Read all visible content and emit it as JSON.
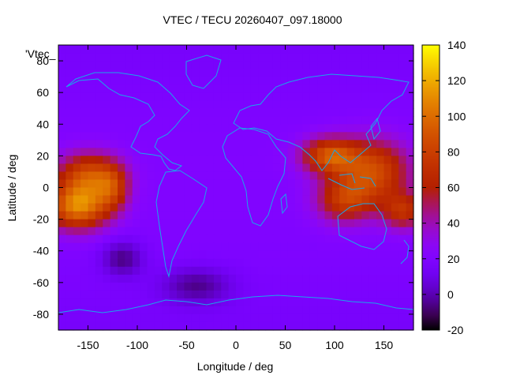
{
  "chart_data": {
    "type": "heatmap",
    "title": "VTEC / TECU 20260407_097.18000",
    "xlabel": "Longitude / deg",
    "ylabel": "Latitude / deg",
    "key_label": "'Vtec_",
    "xlim": [
      -180,
      180
    ],
    "ylim": [
      -90,
      90
    ],
    "x_ticks": [
      -150,
      -100,
      -50,
      0,
      50,
      100,
      150
    ],
    "y_ticks": [
      -80,
      -60,
      -40,
      -20,
      0,
      20,
      40,
      60,
      80
    ],
    "colorbar": {
      "range": [
        -20,
        140
      ],
      "ticks": [
        -20,
        0,
        20,
        40,
        60,
        80,
        100,
        120,
        140
      ],
      "palette": "gnuplot rgbformulae 7,5,15 (black-purple-red-orange-yellow)"
    },
    "background_value": 15,
    "coastline_color": "#1aa7e8",
    "hotspots": [
      {
        "lon": -160,
        "lat": -12,
        "peak": 100,
        "sx": 22,
        "sy": 10
      },
      {
        "lon": -150,
        "lat": 8,
        "peak": 75,
        "sx": 22,
        "sy": 10
      },
      {
        "lon": -125,
        "lat": 0,
        "peak": 55,
        "sx": 12,
        "sy": 10
      },
      {
        "lon": 95,
        "lat": 20,
        "peak": 82,
        "sx": 20,
        "sy": 8
      },
      {
        "lon": 140,
        "lat": 10,
        "peak": 78,
        "sx": 25,
        "sy": 14
      },
      {
        "lon": 110,
        "lat": -8,
        "peak": 65,
        "sx": 20,
        "sy": 10
      },
      {
        "lon": 170,
        "lat": -15,
        "peak": 62,
        "sx": 15,
        "sy": 8
      }
    ],
    "lows": [
      {
        "lon": -115,
        "lat": -45,
        "peak": -10,
        "sx": 15,
        "sy": 8
      },
      {
        "lon": -40,
        "lat": -62,
        "peak": -8,
        "sx": 25,
        "sy": 8
      }
    ]
  }
}
